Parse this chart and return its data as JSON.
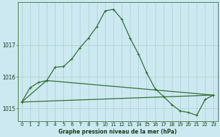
{
  "title": "Graphe pression niveau de la mer (hPa)",
  "background_color": "#cce8f0",
  "grid_color": "#aacccc",
  "line_color": "#2d6a2d",
  "xlim": [
    -0.5,
    23.5
  ],
  "ylim": [
    1014.6,
    1018.35
  ],
  "yticks": [
    1015,
    1016,
    1017
  ],
  "xticks": [
    0,
    1,
    2,
    3,
    4,
    5,
    6,
    7,
    8,
    9,
    10,
    11,
    12,
    13,
    14,
    15,
    16,
    17,
    18,
    19,
    20,
    21,
    22,
    23
  ],
  "series1_x": [
    0,
    1,
    2,
    3,
    4,
    5,
    6,
    7,
    8,
    9,
    10,
    11,
    12,
    13,
    14,
    15,
    16,
    17,
    18,
    19,
    20,
    21,
    22,
    23
  ],
  "series1_y": [
    1015.2,
    1015.65,
    1015.82,
    1015.88,
    1016.3,
    1016.32,
    1016.56,
    1016.92,
    1017.22,
    1017.58,
    1018.08,
    1018.13,
    1017.82,
    1017.22,
    1016.72,
    1016.12,
    1015.62,
    1015.38,
    1015.12,
    1014.92,
    1014.87,
    1014.78,
    1015.28,
    1015.42
  ],
  "series2_x": [
    0,
    23
  ],
  "series2_y": [
    1015.2,
    1015.42
  ],
  "series3_x": [
    0,
    3,
    23
  ],
  "series3_y": [
    1015.2,
    1015.88,
    1015.42
  ],
  "font_color": "#1a3a1a",
  "marker": "+",
  "marker_size": 3,
  "linewidth": 0.9,
  "tick_fontsize": 5.0,
  "label_fontsize": 5.5
}
